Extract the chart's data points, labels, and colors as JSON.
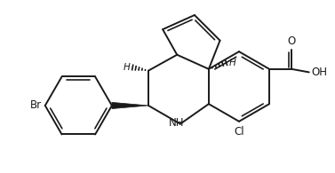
{
  "background_color": "#ffffff",
  "line_color": "#1a1a1a",
  "line_width": 1.4,
  "figsize": [
    3.77,
    1.95
  ],
  "dpi": 100,
  "xlim": [
    0,
    10.5
  ],
  "ylim": [
    0,
    5.2
  ]
}
